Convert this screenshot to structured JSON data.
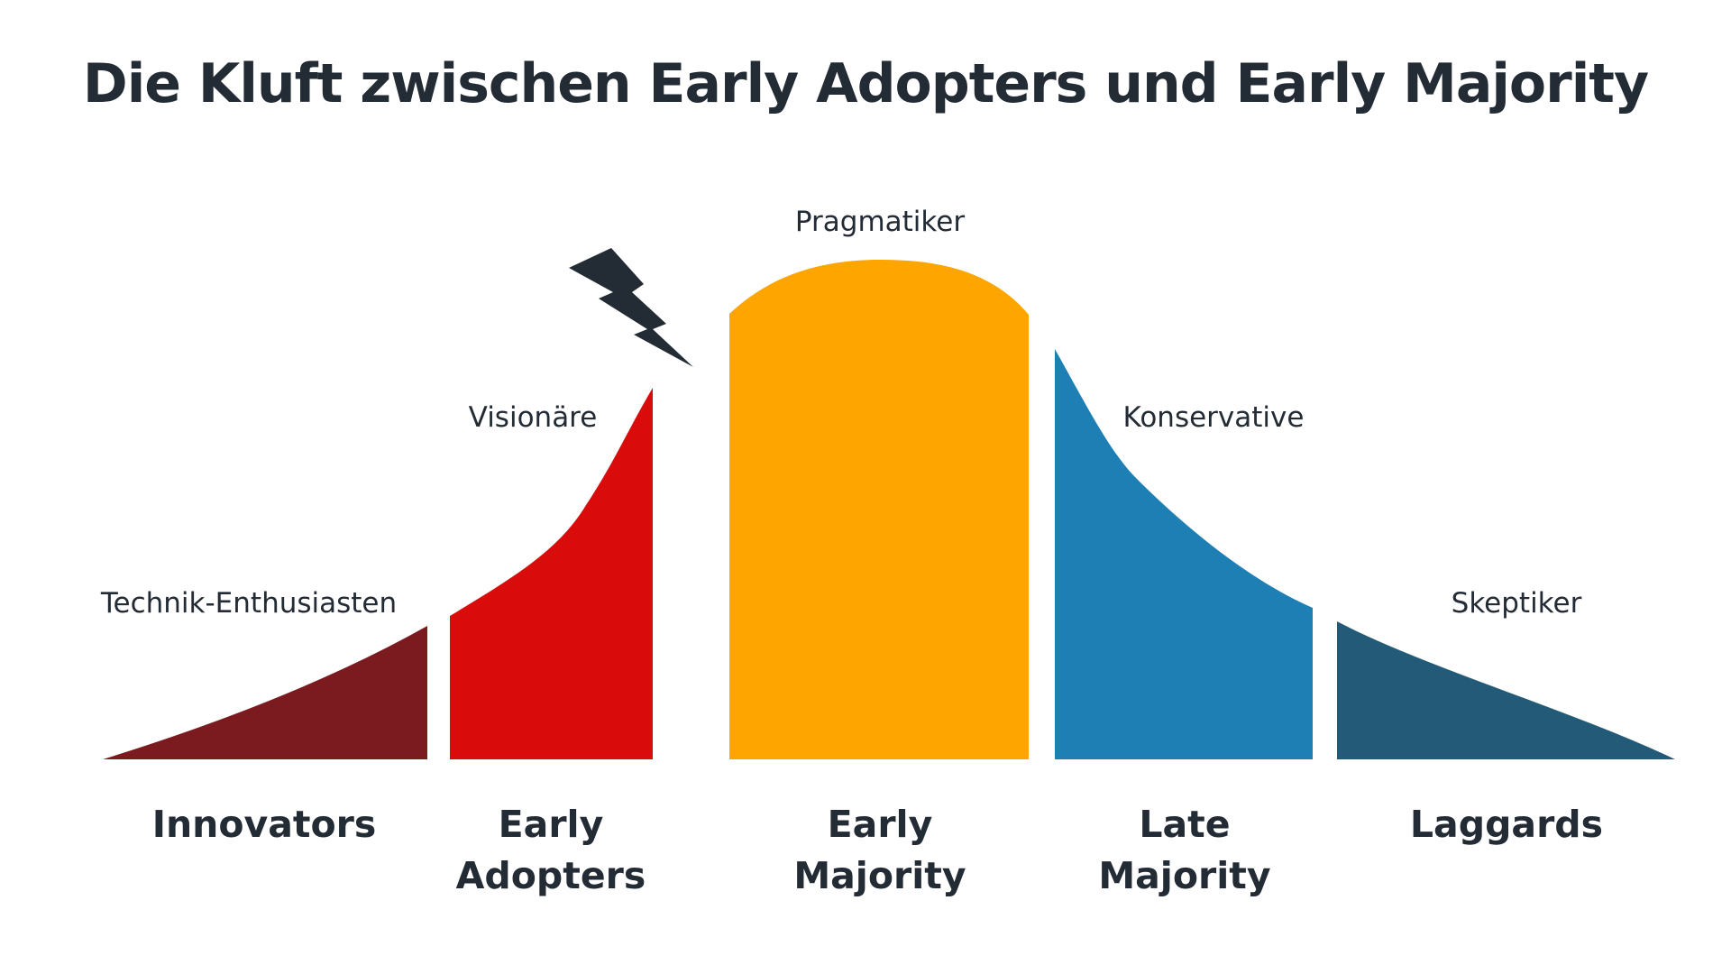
{
  "title": "Die Kluft zwischen Early Adopters und Early Majority",
  "segments": [
    {
      "name": "Innovators",
      "descriptor": "Technik-Enthusiasten"
    },
    {
      "name": "Early Adopters",
      "descriptor": "Visionäre"
    },
    {
      "name": "Early Majority",
      "descriptor": "Pragmatiker"
    },
    {
      "name": "Late Majority",
      "descriptor": "Konservative"
    },
    {
      "name": "Laggards",
      "descriptor": "Skeptiker"
    }
  ]
}
